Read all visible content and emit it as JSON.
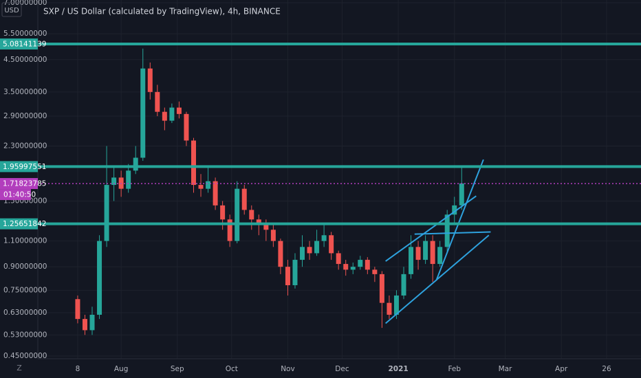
{
  "chart_data": {
    "type": "candlestick",
    "title": "SXP / US Dollar (calculated by TradingView), 4h, BINANCE",
    "currency": "USD",
    "countdown": "01:40:50",
    "scale_mode": "Z",
    "log_scale": true,
    "up_color": "#26a69a",
    "down_color": "#ef5350",
    "ylim": [
      0.45,
      7.0
    ],
    "yticks": [
      {
        "value": 0.45,
        "label": "0.45000000"
      },
      {
        "value": 0.53,
        "label": "0.53000000"
      },
      {
        "value": 0.63,
        "label": "0.63000000"
      },
      {
        "value": 0.75,
        "label": "0.75000000"
      },
      {
        "value": 0.9,
        "label": "0.90000000"
      },
      {
        "value": 1.1,
        "label": "1.10000000"
      },
      {
        "value": 1.5,
        "label": "1.50000000"
      },
      {
        "value": 2.3,
        "label": "2.30000000"
      },
      {
        "value": 2.9,
        "label": "2.90000000"
      },
      {
        "value": 3.5,
        "label": "3.50000000"
      },
      {
        "value": 4.5,
        "label": "4.50000000"
      },
      {
        "value": 5.5,
        "label": "5.50000000"
      },
      {
        "value": 7.0,
        "label": "7.00000000"
      }
    ],
    "xlim": [
      -15,
      318
    ],
    "xticks": [
      {
        "value": 7,
        "label": "8"
      },
      {
        "value": 31,
        "label": "Aug"
      },
      {
        "value": 62,
        "label": "Sep"
      },
      {
        "value": 92,
        "label": "Oct"
      },
      {
        "value": 123,
        "label": "Nov"
      },
      {
        "value": 153,
        "label": "Dec"
      },
      {
        "value": 184,
        "label": "2021"
      },
      {
        "value": 215,
        "label": "Feb"
      },
      {
        "value": 243,
        "label": "Mar"
      },
      {
        "value": 274,
        "label": "Apr"
      },
      {
        "value": 299,
        "label": "26"
      }
    ],
    "grid": true,
    "x": [
      7,
      11,
      15,
      19,
      23,
      27,
      31,
      35,
      39,
      43,
      47,
      51,
      55,
      59,
      63,
      67,
      71,
      75,
      79,
      83,
      87,
      91,
      95,
      99,
      103,
      107,
      111,
      115,
      119,
      123,
      127,
      131,
      135,
      139,
      143,
      147,
      151,
      155,
      159,
      163,
      167,
      171,
      175,
      179,
      183,
      187,
      191,
      195,
      199,
      203,
      207,
      211,
      215,
      219
    ],
    "open": [
      0.7,
      0.6,
      0.55,
      0.62,
      1.1,
      1.7,
      1.8,
      1.65,
      1.9,
      2.1,
      4.2,
      3.5,
      3.0,
      2.8,
      3.1,
      2.95,
      2.4,
      1.7,
      1.65,
      1.75,
      1.45,
      1.3,
      1.1,
      1.65,
      1.4,
      1.3,
      1.25,
      1.2,
      1.1,
      0.9,
      0.78,
      0.95,
      1.05,
      1.0,
      1.1,
      1.15,
      1.0,
      0.92,
      0.88,
      0.9,
      0.95,
      0.88,
      0.85,
      0.68,
      0.62,
      0.72,
      0.85,
      1.05,
      0.95,
      1.1,
      0.92,
      1.05,
      1.35,
      1.45
    ],
    "high": [
      0.72,
      0.62,
      0.66,
      1.15,
      2.3,
      1.95,
      1.9,
      2.0,
      2.3,
      4.9,
      4.4,
      3.7,
      3.1,
      3.2,
      3.25,
      3.0,
      2.45,
      1.85,
      1.95,
      1.8,
      1.5,
      1.35,
      1.75,
      1.7,
      1.45,
      1.35,
      1.3,
      1.25,
      1.12,
      0.95,
      1.0,
      1.15,
      1.1,
      1.2,
      1.25,
      1.18,
      1.02,
      0.95,
      0.93,
      0.98,
      0.97,
      0.9,
      0.87,
      0.72,
      0.75,
      0.9,
      1.15,
      1.1,
      1.15,
      1.15,
      1.1,
      1.4,
      1.55,
      1.98
    ],
    "low": [
      0.58,
      0.53,
      0.53,
      0.6,
      1.05,
      1.5,
      1.55,
      1.6,
      1.85,
      2.05,
      3.3,
      2.9,
      2.6,
      2.75,
      2.85,
      2.3,
      1.6,
      1.55,
      1.6,
      1.4,
      1.2,
      1.05,
      1.08,
      1.35,
      1.2,
      1.15,
      1.1,
      1.05,
      0.85,
      0.72,
      0.76,
      0.9,
      0.95,
      0.98,
      1.05,
      0.95,
      0.88,
      0.84,
      0.85,
      0.88,
      0.85,
      0.8,
      0.56,
      0.6,
      0.6,
      0.7,
      0.82,
      0.88,
      0.92,
      0.8,
      0.9,
      1.0,
      1.25,
      1.4
    ],
    "close": [
      0.6,
      0.55,
      0.62,
      1.1,
      1.7,
      1.8,
      1.65,
      1.9,
      2.1,
      4.2,
      3.5,
      3.0,
      2.8,
      3.1,
      2.95,
      2.4,
      1.7,
      1.65,
      1.75,
      1.45,
      1.3,
      1.1,
      1.65,
      1.4,
      1.3,
      1.25,
      1.2,
      1.1,
      0.9,
      0.78,
      0.95,
      1.05,
      1.0,
      1.1,
      1.15,
      1.0,
      0.92,
      0.88,
      0.9,
      0.95,
      0.88,
      0.85,
      0.68,
      0.62,
      0.72,
      0.85,
      1.05,
      0.95,
      1.1,
      0.92,
      1.05,
      1.35,
      1.45,
      1.72
    ],
    "horizontal_lines": [
      {
        "value": 5.08141139,
        "color": "#26a69a",
        "style": "solid"
      },
      {
        "value": 1.95997551,
        "color": "#26a69a",
        "style": "solid"
      },
      {
        "value": 1.25651842,
        "color": "#26a69a",
        "style": "solid"
      },
      {
        "value": 1.71823785,
        "color": "#b23ebd",
        "style": "dotted"
      }
    ],
    "drawings_color": "#2ea2de",
    "drawings": [
      {
        "x": [
          177,
          227
        ],
        "y": [
          0.94,
          1.56
        ]
      },
      {
        "x": [
          177,
          234
        ],
        "y": [
          0.58,
          1.15
        ]
      },
      {
        "x": [
          193,
          235
        ],
        "y": [
          1.16,
          1.18
        ]
      },
      {
        "x": [
          205,
          231
        ],
        "y": [
          0.81,
          2.07
        ]
      }
    ]
  }
}
